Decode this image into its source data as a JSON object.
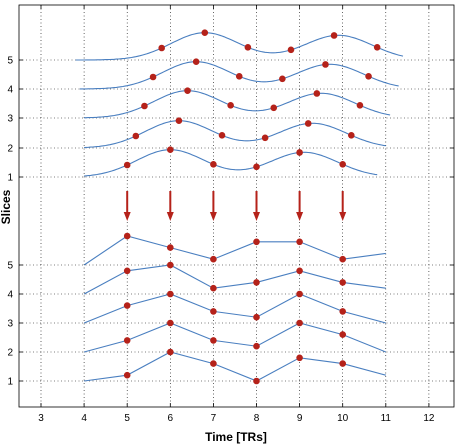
{
  "chart_data": {
    "type": "line",
    "xlabel": "Time [TRs]",
    "ylabel": "Slices",
    "xlim": [
      2.5,
      12.5
    ],
    "x_ticks": [
      3,
      4,
      5,
      6,
      7,
      8,
      9,
      10,
      11,
      12
    ],
    "y_tick_labels": [
      "1",
      "2",
      "3",
      "4",
      "5"
    ],
    "grid": true,
    "line_color": "#4a7fc0",
    "marker_color": "#b5221a",
    "arrow_color": "#b5221a",
    "arrow_times": [
      5,
      6,
      7,
      8,
      9,
      10
    ],
    "continuous_signals": [
      {
        "name": "1",
        "x_range": [
          4.0,
          10.8
        ],
        "sample_times": [
          5.0,
          6.0,
          7.0,
          8.0,
          9.0,
          10.0
        ]
      },
      {
        "name": "2",
        "x_range": [
          4.0,
          11.0
        ],
        "sample_times": [
          5.2,
          6.2,
          7.2,
          8.2,
          9.2,
          10.2
        ]
      },
      {
        "name": "3",
        "x_range": [
          4.0,
          11.1
        ],
        "sample_times": [
          5.4,
          6.4,
          7.4,
          8.4,
          9.4,
          10.4
        ]
      },
      {
        "name": "4",
        "x_range": [
          3.9,
          11.3
        ],
        "sample_times": [
          5.6,
          6.6,
          7.6,
          8.6,
          9.6,
          10.6
        ]
      },
      {
        "name": "5",
        "x_range": [
          3.8,
          11.4
        ],
        "sample_times": [
          5.8,
          6.8,
          7.8,
          8.8,
          9.8,
          10.8
        ]
      }
    ],
    "sampled_series": [
      {
        "name": "1",
        "x": [
          4,
          5,
          6,
          7,
          8,
          9,
          10,
          11
        ],
        "y": [
          0.0,
          0.2,
          1.0,
          0.6,
          0.0,
          0.8,
          0.6,
          0.2
        ],
        "marker_x": [
          5,
          6,
          7,
          8,
          9,
          10
        ]
      },
      {
        "name": "2",
        "x": [
          4,
          5,
          6,
          7,
          8,
          9,
          10,
          11
        ],
        "y": [
          0.0,
          0.4,
          1.0,
          0.4,
          0.2,
          1.0,
          0.6,
          0.0
        ],
        "marker_x": [
          5,
          6,
          7,
          8,
          9,
          10
        ]
      },
      {
        "name": "3",
        "x": [
          4,
          5,
          6,
          7,
          8,
          9,
          10,
          11
        ],
        "y": [
          0.0,
          0.6,
          1.0,
          0.4,
          0.2,
          1.0,
          0.4,
          0.0
        ],
        "marker_x": [
          5,
          6,
          7,
          8,
          9,
          10
        ]
      },
      {
        "name": "4",
        "x": [
          4,
          5,
          6,
          7,
          8,
          9,
          10,
          11
        ],
        "y": [
          0.0,
          0.8,
          1.0,
          0.2,
          0.4,
          0.8,
          0.4,
          0.2
        ],
        "marker_x": [
          5,
          6,
          7,
          8,
          9,
          10
        ]
      },
      {
        "name": "5",
        "x": [
          4,
          5,
          6,
          7,
          8,
          9,
          10,
          11
        ],
        "y": [
          0.0,
          1.0,
          0.6,
          0.2,
          0.8,
          0.8,
          0.2,
          0.4
        ],
        "marker_x": [
          5,
          6,
          7,
          8,
          9,
          10
        ]
      }
    ]
  }
}
